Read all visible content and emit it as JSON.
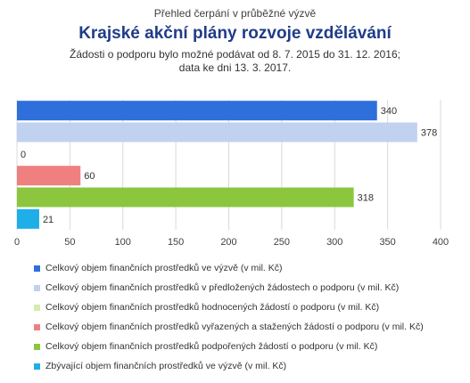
{
  "header": {
    "pretitle": "Přehled čerpání v průběžné výzvě",
    "title": "Krajské akční plány rozvoje vzdělávání",
    "subtitle_line1": "Žádosti o podporu bylo možné podávat od 8. 7. 2015 do 31. 12. 2016;",
    "subtitle_line2": "data ke dni 13. 3. 2017."
  },
  "chart_data": {
    "type": "bar",
    "orientation": "horizontal",
    "xlim": [
      0,
      400
    ],
    "ticks": [
      0,
      50,
      100,
      150,
      200,
      250,
      300,
      350,
      400
    ],
    "grid": true,
    "legend_position": "bottom",
    "series": [
      {
        "name": "Celkový objem finančních prostředků ve výzvě (v mil. Kč)",
        "value": 340,
        "color": "#2e6fdc"
      },
      {
        "name": "Celkový objem finančních prostředků v předložených žádostech o podporu (v mil. Kč)",
        "value": 378,
        "color": "#c0d2f0"
      },
      {
        "name": "Celkový objem finančních prostředků hodnocených žádostí o podporu (v mil. Kč)",
        "value": 0,
        "color": "#d6eab0"
      },
      {
        "name": "Celkový objem finančních prostředků vyřazených a stažených žádostí o podporu (v mil. Kč)",
        "value": 60,
        "color": "#f08080"
      },
      {
        "name": "Celkový objem finančních prostředků podpořených žádostí o podporu (v mil. Kč)",
        "value": 318,
        "color": "#8cc63f"
      },
      {
        "name": "Zbývající objem finančních prostředků ve výzvě (v mil. Kč)",
        "value": 21,
        "color": "#1eaee8"
      }
    ]
  }
}
